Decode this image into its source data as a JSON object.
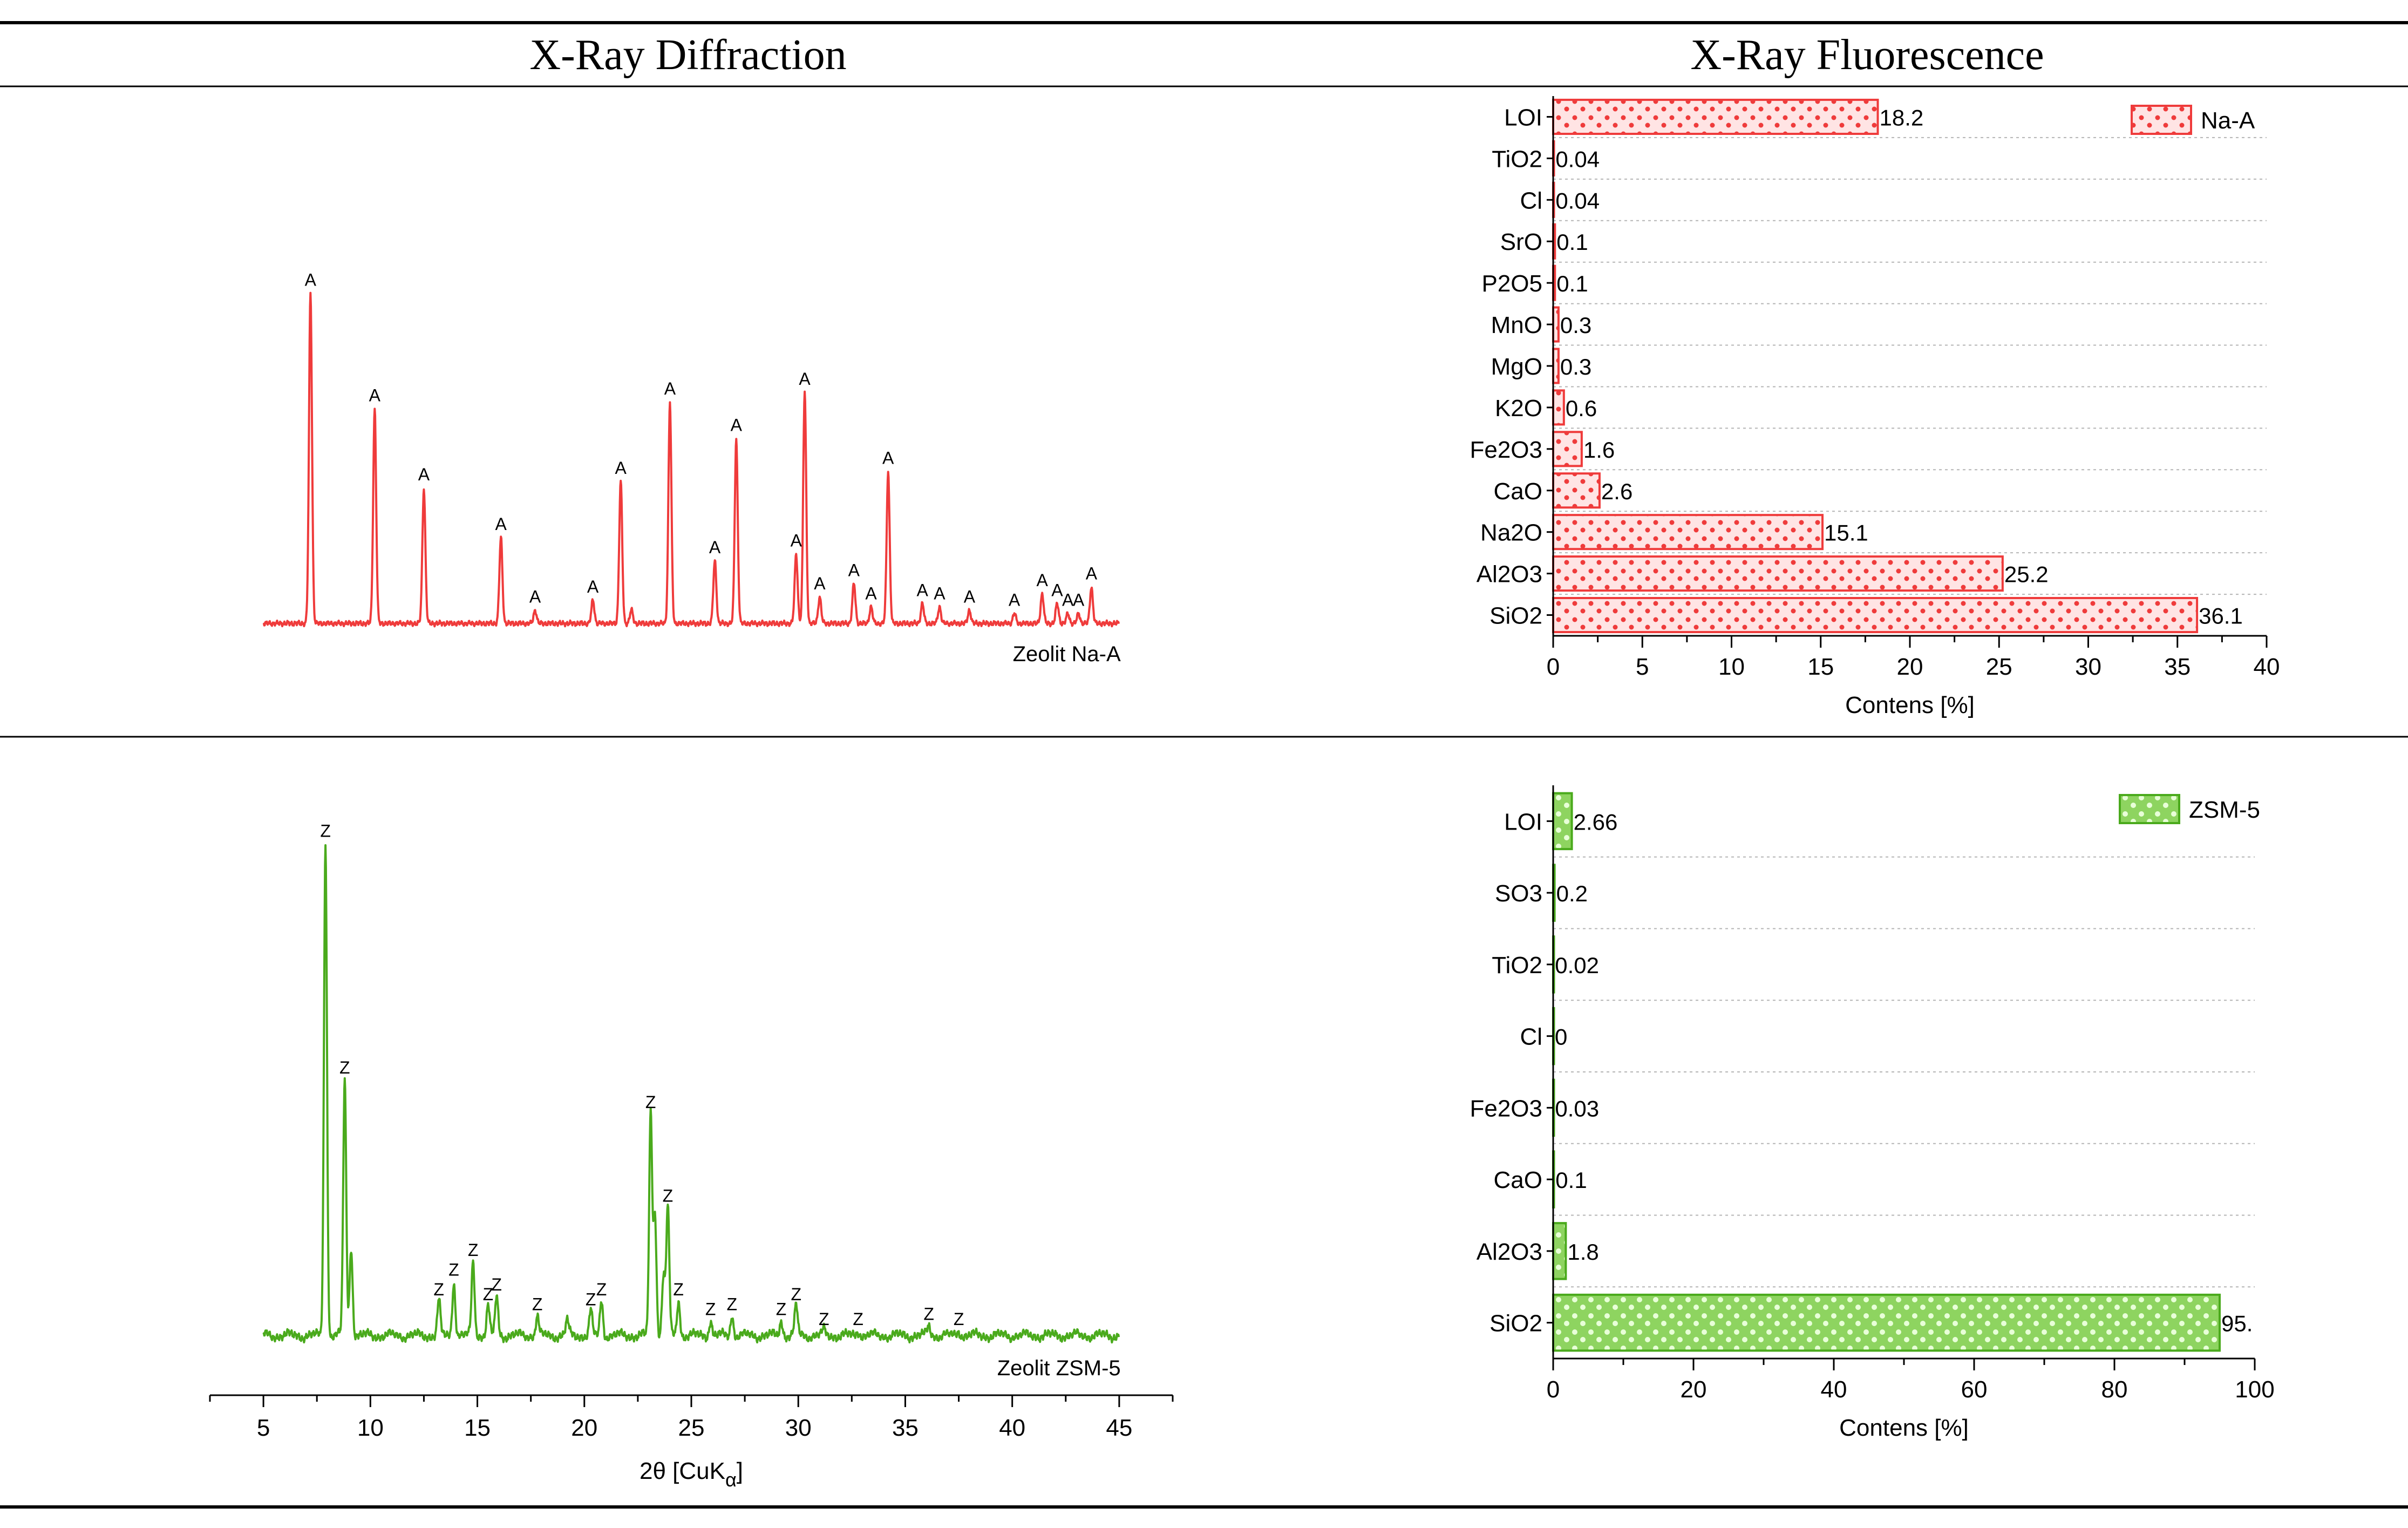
{
  "table": {
    "header_left": "X-Ray Diffraction",
    "header_right": "X-Ray Fluorescence"
  },
  "colors": {
    "na_a": "#ef3b3b",
    "zsm5": "#4aaa1c",
    "grid": "#b5b5b5",
    "axis": "#000000"
  },
  "chart_data": [
    {
      "id": "xrd_na_a",
      "type": "line",
      "title": "",
      "series_label": "Zeolit Na-A",
      "peak_letter": "A",
      "x_range": [
        2.5,
        47.5
      ],
      "y_range": [
        0,
        1.12
      ],
      "peaks": [
        {
          "x": 7.2,
          "h": 1.0,
          "label": true
        },
        {
          "x": 10.2,
          "h": 0.65,
          "label": true
        },
        {
          "x": 12.5,
          "h": 0.41,
          "label": true
        },
        {
          "x": 16.1,
          "h": 0.26,
          "label": true
        },
        {
          "x": 17.7,
          "h": 0.04,
          "label": true
        },
        {
          "x": 20.4,
          "h": 0.07,
          "label": true
        },
        {
          "x": 21.7,
          "h": 0.43,
          "label": true
        },
        {
          "x": 22.2,
          "h": 0.04,
          "label": false
        },
        {
          "x": 24.0,
          "h": 0.67,
          "label": true
        },
        {
          "x": 26.1,
          "h": 0.19,
          "label": true
        },
        {
          "x": 27.1,
          "h": 0.56,
          "label": true
        },
        {
          "x": 29.9,
          "h": 0.21,
          "label": true
        },
        {
          "x": 30.3,
          "h": 0.7,
          "label": true
        },
        {
          "x": 31.0,
          "h": 0.08,
          "label": true
        },
        {
          "x": 32.6,
          "h": 0.12,
          "label": true
        },
        {
          "x": 33.4,
          "h": 0.05,
          "label": true
        },
        {
          "x": 34.2,
          "h": 0.46,
          "label": true
        },
        {
          "x": 35.8,
          "h": 0.06,
          "label": true
        },
        {
          "x": 36.6,
          "h": 0.05,
          "label": true
        },
        {
          "x": 38.0,
          "h": 0.04,
          "label": true
        },
        {
          "x": 40.1,
          "h": 0.03,
          "label": true
        },
        {
          "x": 41.4,
          "h": 0.09,
          "label": true
        },
        {
          "x": 42.1,
          "h": 0.06,
          "label": true
        },
        {
          "x": 42.6,
          "h": 0.03,
          "label": true
        },
        {
          "x": 43.1,
          "h": 0.03,
          "label": true
        },
        {
          "x": 43.7,
          "h": 0.11,
          "label": true
        }
      ]
    },
    {
      "id": "xrd_zsm5",
      "type": "line",
      "series_label": "Zeolit ZSM-5",
      "peak_letter": "Z",
      "xlabel_main": "2θ [CuK",
      "xlabel_sub": "α",
      "xlabel_close": "]",
      "x_range": [
        2.5,
        47.5
      ],
      "y_range": [
        0,
        1.1
      ],
      "x_ticks": [
        5,
        10,
        15,
        20,
        25,
        30,
        35,
        40,
        45
      ],
      "peaks": [
        {
          "x": 7.9,
          "h": 1.0,
          "label": true
        },
        {
          "x": 8.8,
          "h": 0.52,
          "label": true
        },
        {
          "x": 9.1,
          "h": 0.18,
          "label": false
        },
        {
          "x": 13.2,
          "h": 0.07,
          "label": true
        },
        {
          "x": 13.9,
          "h": 0.11,
          "label": true
        },
        {
          "x": 14.8,
          "h": 0.15,
          "label": true
        },
        {
          "x": 15.5,
          "h": 0.06,
          "label": true
        },
        {
          "x": 15.9,
          "h": 0.08,
          "label": true
        },
        {
          "x": 17.8,
          "h": 0.04,
          "label": true
        },
        {
          "x": 19.2,
          "h": 0.03,
          "label": false
        },
        {
          "x": 20.3,
          "h": 0.05,
          "label": true
        },
        {
          "x": 20.8,
          "h": 0.07,
          "label": true
        },
        {
          "x": 23.1,
          "h": 0.45,
          "label": true
        },
        {
          "x": 23.3,
          "h": 0.25,
          "label": false
        },
        {
          "x": 23.7,
          "h": 0.12,
          "label": false
        },
        {
          "x": 23.9,
          "h": 0.26,
          "label": true
        },
        {
          "x": 24.4,
          "h": 0.07,
          "label": true
        },
        {
          "x": 25.9,
          "h": 0.03,
          "label": true
        },
        {
          "x": 26.9,
          "h": 0.04,
          "label": true
        },
        {
          "x": 29.2,
          "h": 0.03,
          "label": true
        },
        {
          "x": 29.9,
          "h": 0.06,
          "label": true
        },
        {
          "x": 31.2,
          "h": 0.01,
          "label": true
        },
        {
          "x": 32.8,
          "h": 0.01,
          "label": true
        },
        {
          "x": 36.1,
          "h": 0.02,
          "label": true
        },
        {
          "x": 37.5,
          "h": 0.01,
          "label": true
        }
      ]
    },
    {
      "id": "xrf_na_a",
      "type": "bar",
      "orientation": "horizontal",
      "legend": "Na-A",
      "legend_position": "top-right",
      "xlabel": "Contens [%]",
      "xlim": [
        0,
        40
      ],
      "x_ticks": [
        0,
        5,
        10,
        15,
        20,
        25,
        30,
        35,
        40
      ],
      "categories": [
        "LOI",
        "TiO2",
        "Cl",
        "SrO",
        "P2O5",
        "MnO",
        "MgO",
        "K2O",
        "Fe2O3",
        "CaO",
        "Na2O",
        "Al2O3",
        "SiO2"
      ],
      "values": [
        18.2,
        0.04,
        0.04,
        0.1,
        0.1,
        0.3,
        0.3,
        0.6,
        1.6,
        2.6,
        15.1,
        25.2,
        36.1
      ],
      "value_labels": [
        "18.2",
        "0.04",
        "0.04",
        "0.1",
        "0.1",
        "0.3",
        "0.3",
        "0.6",
        "1.6",
        "2.6",
        "15.1",
        "25.2",
        "36.1"
      ]
    },
    {
      "id": "xrf_zsm5",
      "type": "bar",
      "orientation": "horizontal",
      "legend": "ZSM-5",
      "legend_position": "top-right",
      "xlabel": "Contens [%]",
      "xlim": [
        0,
        100
      ],
      "x_ticks": [
        0,
        20,
        40,
        60,
        80,
        100
      ],
      "categories": [
        "LOI",
        "SO3",
        "TiO2",
        "Cl",
        "Fe2O3",
        "CaO",
        "Al2O3",
        "SiO2"
      ],
      "values": [
        2.66,
        0.2,
        0.02,
        0,
        0.03,
        0.1,
        1.8,
        95.0
      ],
      "value_labels": [
        "2.66",
        "0.2",
        "0.02",
        "0",
        "0.03",
        "0.1",
        "1.8",
        "95."
      ]
    }
  ]
}
